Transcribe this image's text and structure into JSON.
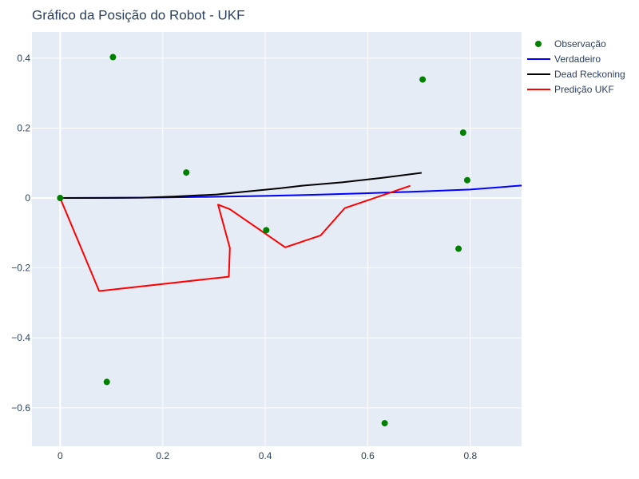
{
  "chart_data": {
    "type": "line",
    "title": "Gráfico da Posição do Robot - UKF",
    "xlabel": "",
    "ylabel": "",
    "xlim": [
      -0.055,
      0.9
    ],
    "ylim": [
      -0.71,
      0.475
    ],
    "x_ticks": [
      0,
      0.2,
      0.4,
      0.6,
      0.8
    ],
    "x_tick_labels": [
      "0",
      "0.2",
      "0.4",
      "0.6",
      "0.8"
    ],
    "y_ticks": [
      0.4,
      0.2,
      0,
      -0.2,
      -0.4,
      -0.6
    ],
    "y_tick_labels": [
      "0.4",
      "0.2",
      "0",
      "−0.2",
      "−0.4",
      "−0.6"
    ],
    "grid": true,
    "legend_position": "top-right outside plot",
    "plot_background": "#e5ecf6",
    "series": [
      {
        "name": "Observação",
        "mode": "markers",
        "color": "#008000",
        "x": [
          0.0,
          0.103,
          0.246,
          0.402,
          0.707,
          0.786,
          0.794,
          0.777,
          0.091,
          0.633
        ],
        "y": [
          0.0,
          0.403,
          0.073,
          -0.092,
          0.339,
          0.187,
          0.051,
          -0.145,
          -0.526,
          -0.644
        ]
      },
      {
        "name": "Verdadeiro",
        "mode": "lines",
        "color": "#0000ff",
        "x": [
          0.0,
          0.1,
          0.2,
          0.3,
          0.4,
          0.5,
          0.6,
          0.7,
          0.8,
          0.9
        ],
        "y": [
          0.0,
          0.0005,
          0.0015,
          0.0035,
          0.006,
          0.0095,
          0.0137,
          0.0186,
          0.0243,
          0.0358
        ]
      },
      {
        "name": "Dead Reckoning",
        "mode": "lines",
        "color": "#000000",
        "x": [
          0.0,
          0.16,
          0.22,
          0.305,
          0.36,
          0.43,
          0.47,
          0.55,
          0.63,
          0.705
        ],
        "y": [
          0.0,
          0.001,
          0.004,
          0.01,
          0.018,
          0.028,
          0.035,
          0.045,
          0.058,
          0.072
        ]
      },
      {
        "name": "Predição UKF",
        "mode": "lines",
        "color": "#ff0000",
        "x": [
          0.0,
          0.076,
          0.329,
          0.331,
          0.308,
          0.331,
          0.439,
          0.508,
          0.555,
          0.683
        ],
        "y": [
          0.0,
          -0.266,
          -0.225,
          -0.143,
          -0.019,
          -0.032,
          -0.141,
          -0.107,
          -0.029,
          0.035
        ]
      }
    ]
  }
}
